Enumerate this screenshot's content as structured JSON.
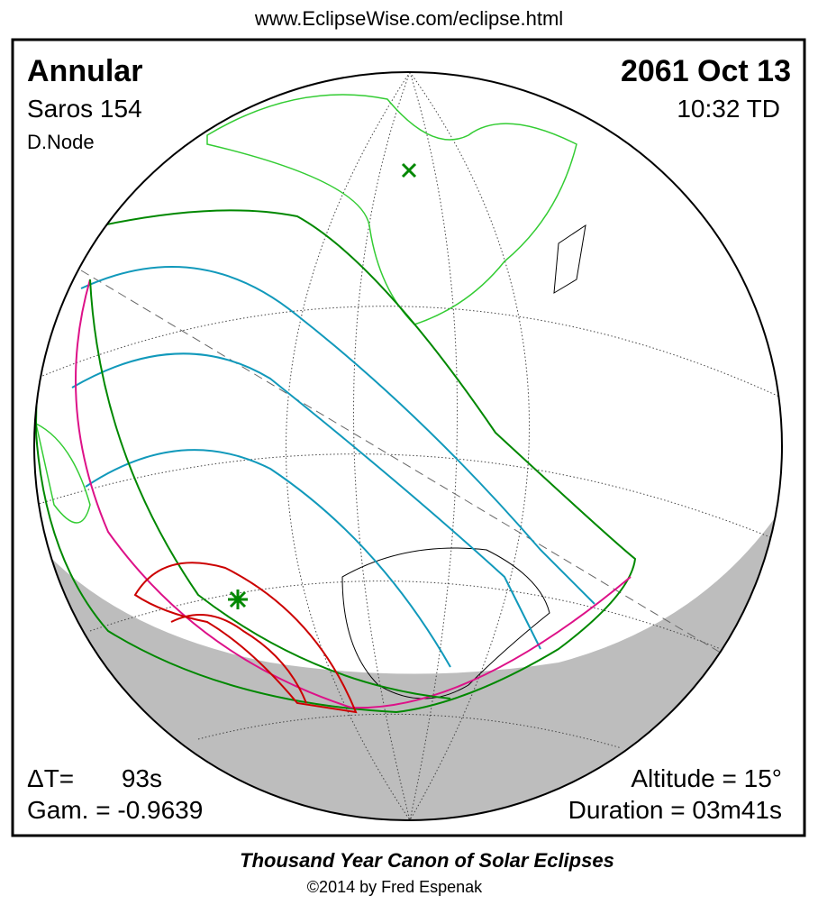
{
  "header": {
    "url": "www.EclipseWise.com/eclipse.html"
  },
  "eclipse": {
    "type": "Annular",
    "saros": "Saros 154",
    "node": "D.Node",
    "date": "2061 Oct 13",
    "time": "10:32 TD",
    "delta_t_label": "ΔT=",
    "delta_t_value": "93s",
    "gamma": "Gam. = -0.9639",
    "altitude": "Altitude = 15°",
    "duration": "Duration = 03m41s"
  },
  "footer": {
    "title": "Thousand Year Canon of Solar Eclipses",
    "credit": "©2014 by Fred Espenak"
  }
}
